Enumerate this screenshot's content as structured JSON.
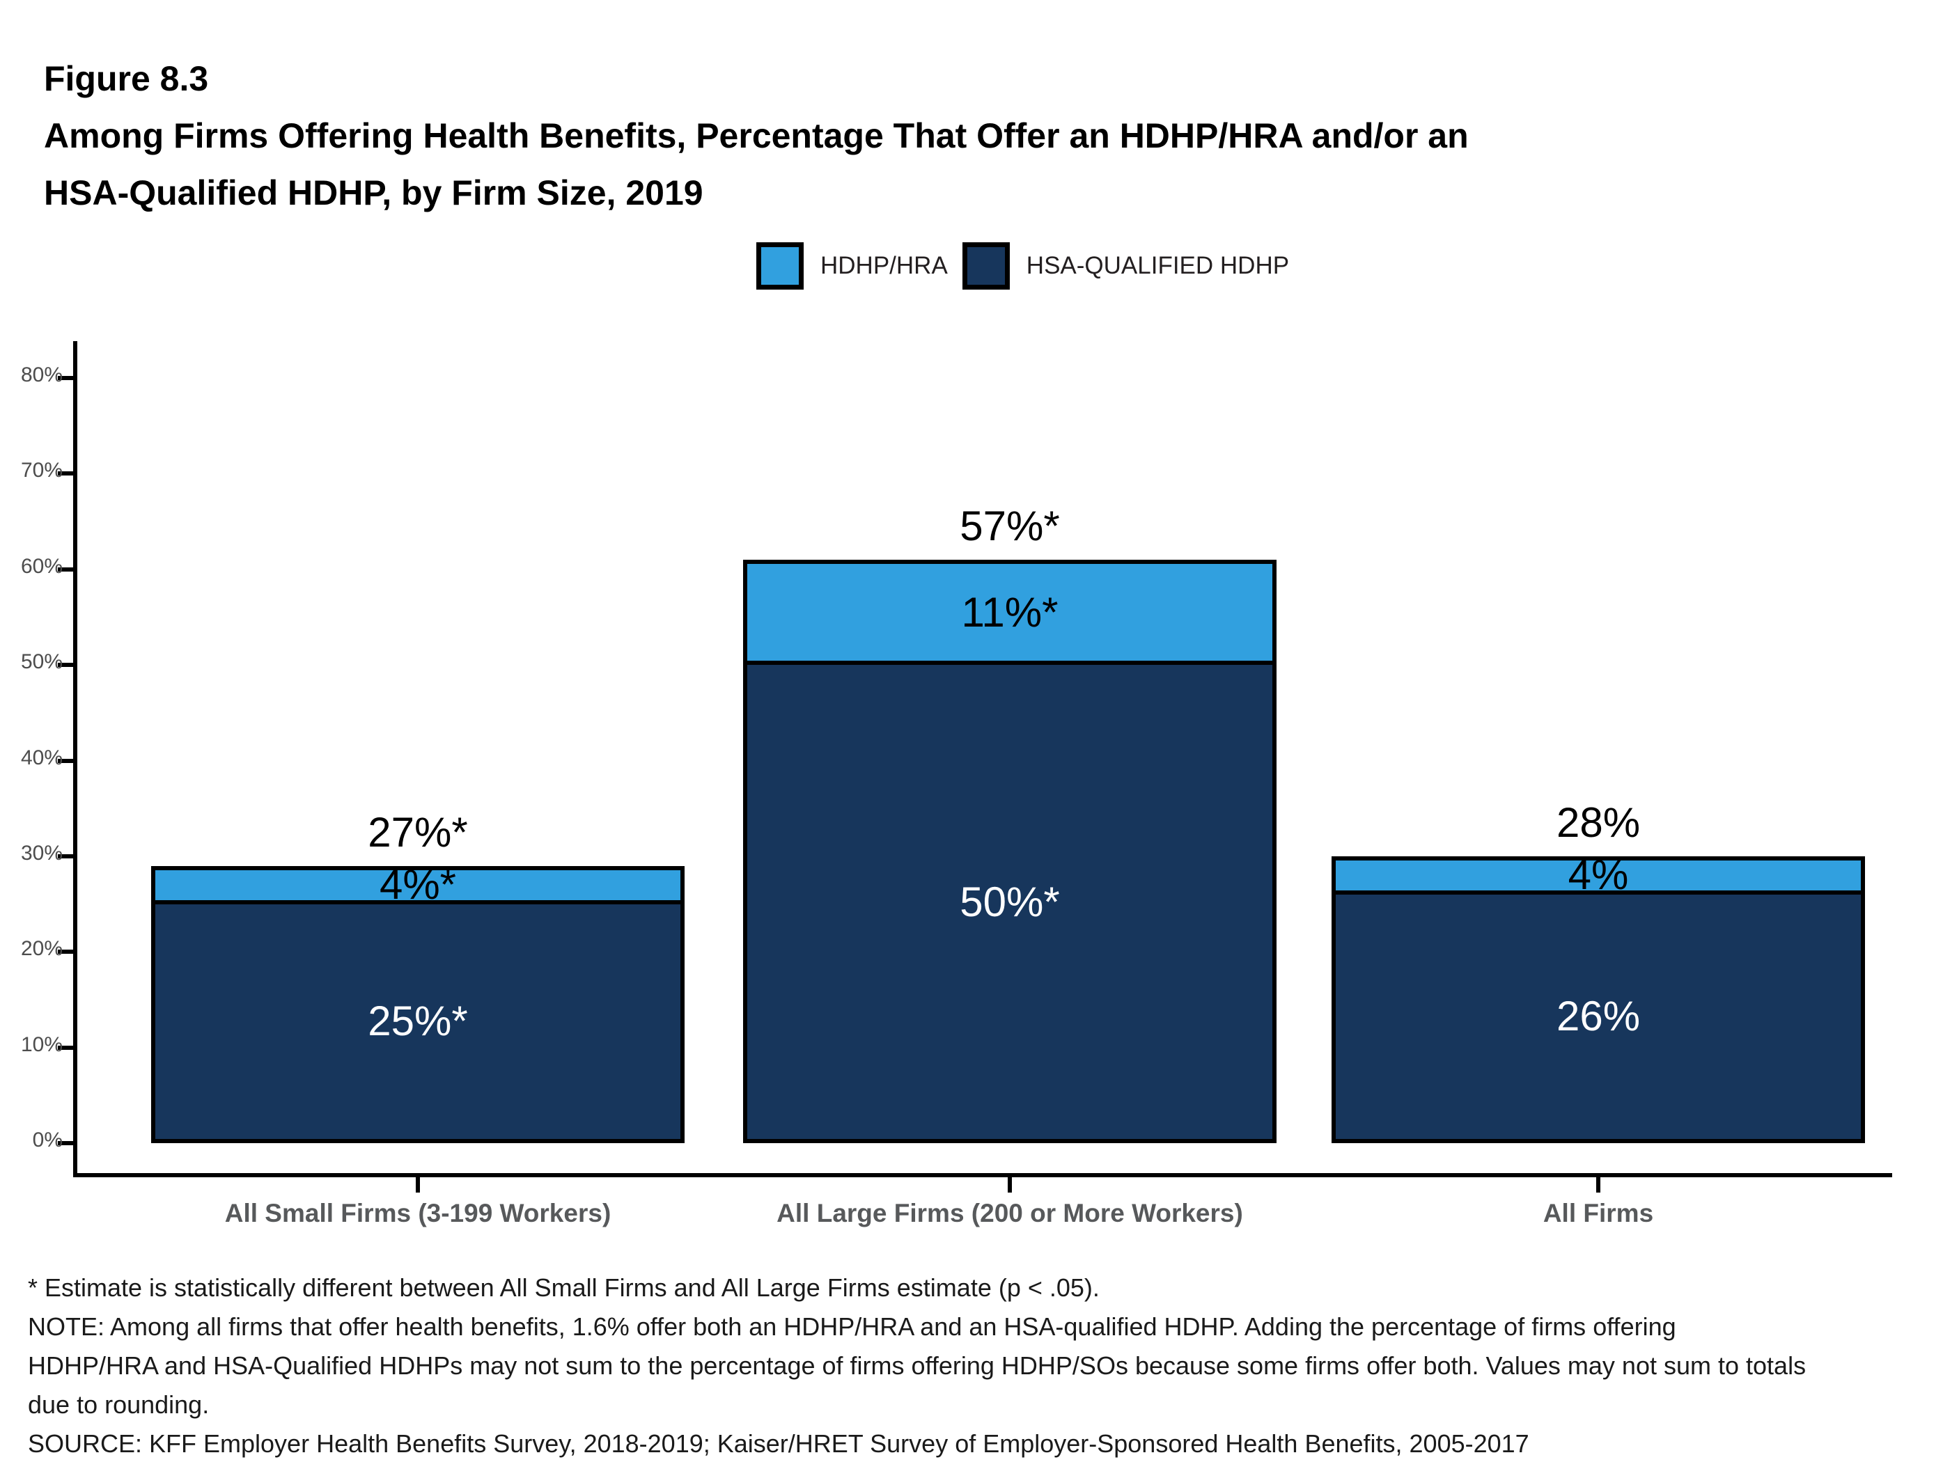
{
  "figure": {
    "label": "Figure 8.3",
    "title_lines": [
      "Among Firms Offering Health Benefits, Percentage That Offer an HDHP/HRA and/or an",
      "HSA-Qualified HDHP, by Firm Size, 2019"
    ]
  },
  "legend": {
    "items": [
      {
        "label": "HDHP/HRA",
        "color": "#31a0df"
      },
      {
        "label": "HSA-QUALIFIED HDHP",
        "color": "#17365c"
      }
    ]
  },
  "chart_data": {
    "type": "bar",
    "stacked": true,
    "title": "Among Firms Offering Health Benefits, Percentage That Offer an HDHP/HRA and/or an HSA-Qualified HDHP, by Firm Size, 2019",
    "categories": [
      "All Small Firms (3-199 Workers)",
      "All Large Firms (200 or More Workers)",
      "All Firms"
    ],
    "series": [
      {
        "name": "HSA-QUALIFIED HDHP",
        "color": "#17365c",
        "values": [
          25,
          50,
          26
        ],
        "data_labels": [
          "25%*",
          "50%*",
          "26%"
        ],
        "label_color": "#ffffff"
      },
      {
        "name": "HDHP/HRA",
        "color": "#31a0df",
        "values": [
          4,
          11,
          4
        ],
        "data_labels": [
          "4%*",
          "11%*",
          "4%"
        ],
        "label_color": "#000000"
      }
    ],
    "totals": {
      "values": [
        27,
        57,
        28
      ],
      "labels": [
        "27%*",
        "57%*",
        "28%"
      ]
    },
    "xlabel": "",
    "ylabel": "",
    "ylim": [
      0,
      85
    ],
    "yticks": [
      "0%",
      "10%",
      "20%",
      "30%",
      "40%",
      "50%",
      "60%",
      "70%",
      "80%"
    ],
    "grid": false,
    "legend_position": "top",
    "bar_border_color": "#000000"
  },
  "footnotes": [
    "* Estimate is statistically different between All Small Firms and All Large Firms estimate (p < .05).",
    "NOTE: Among all firms that offer health benefits, 1.6% offer both an HDHP/HRA and an HSA-qualified HDHP. Adding the percentage of firms offering",
    "HDHP/HRA and HSA-Qualified HDHPs may not sum to the percentage of firms offering HDHP/SOs because some firms offer both. Values may not sum to totals",
    "due to rounding.",
    "SOURCE: KFF Employer Health Benefits Survey, 2018-2019; Kaiser/HRET Survey of Employer-Sponsored Health Benefits, 2005-2017"
  ]
}
